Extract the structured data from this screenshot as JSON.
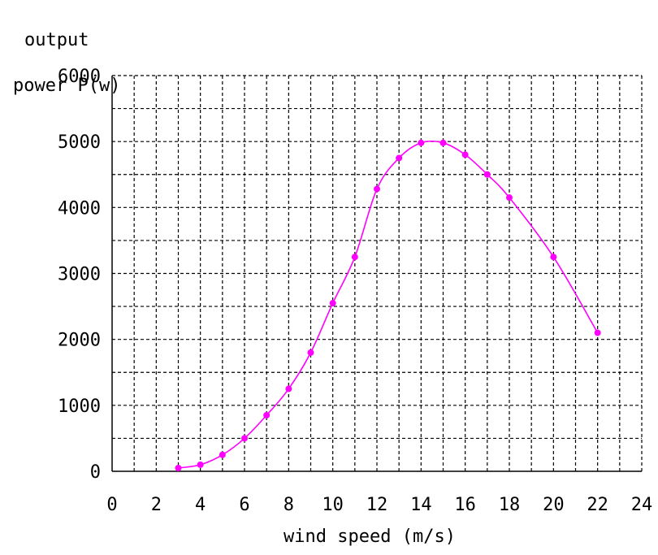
{
  "chart_data": {
    "type": "line",
    "ylabel_line1": "output",
    "ylabel_line2": "power P(w)",
    "xlabel": "wind speed (m/s)",
    "xlim": [
      0,
      24
    ],
    "ylim": [
      0,
      6000
    ],
    "x_ticks": [
      0,
      2,
      4,
      6,
      8,
      10,
      12,
      14,
      16,
      18,
      20,
      22,
      24
    ],
    "y_ticks": [
      0,
      1000,
      2000,
      3000,
      4000,
      5000,
      6000
    ],
    "grid": true,
    "grid_style": "dashed",
    "series": [
      {
        "color": "#ff00ff",
        "x": [
          3,
          4,
          5,
          6,
          7,
          8,
          9,
          10,
          11,
          12,
          13,
          14,
          15,
          16,
          17,
          18,
          20,
          22
        ],
        "y": [
          50,
          100,
          250,
          500,
          850,
          1250,
          1800,
          2550,
          3250,
          4280,
          4750,
          4980,
          4980,
          4800,
          4500,
          4150,
          3250,
          2100
        ]
      }
    ]
  }
}
